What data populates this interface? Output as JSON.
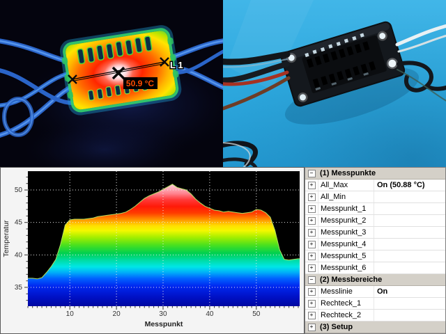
{
  "thermal_view": {
    "line_label": "L 1",
    "temp_label": "50.9 °C",
    "temp_label_color": "#ff4d00",
    "temp_label_bg": "#000000"
  },
  "photo_view": {
    "background_color": "#2aa9e0"
  },
  "chart_data": {
    "type": "area",
    "title": "",
    "xlabel": "Messpunkt",
    "ylabel": "Temperatur",
    "xlim": [
      1,
      59.3
    ],
    "ylim": [
      32.1,
      52.9
    ],
    "xticks": [
      10,
      20,
      30,
      40,
      50
    ],
    "yticks": [
      35,
      40,
      45,
      50
    ],
    "grid": "white-dotted",
    "plot_bg": "#000000",
    "outline_color": "#b0e060",
    "x_start": 1,
    "values": [
      36.4,
      36.4,
      36.3,
      36.5,
      37.3,
      38.2,
      39.3,
      41.6,
      44.6,
      45.4,
      45.5,
      45.5,
      45.5,
      45.6,
      45.7,
      45.9,
      46.0,
      46.1,
      46.2,
      46.3,
      46.4,
      46.6,
      47.0,
      47.5,
      48.1,
      48.7,
      49.1,
      49.4,
      49.7,
      50.1,
      50.5,
      50.9,
      50.4,
      50.2,
      50.0,
      49.4,
      48.6,
      48.0,
      47.5,
      47.2,
      46.9,
      46.8,
      46.6,
      46.7,
      46.6,
      46.5,
      46.4,
      46.5,
      46.6,
      47.0,
      46.9,
      46.5,
      45.8,
      43.8,
      40.8,
      39.3,
      39.2,
      39.3,
      39.4
    ],
    "gradient": [
      {
        "offset": 0.0,
        "color": "#ffffff"
      },
      {
        "offset": 0.07,
        "color": "#ffe0e8"
      },
      {
        "offset": 0.115,
        "color": "#ffbcc8"
      },
      {
        "offset": 0.165,
        "color": "#ff8490"
      },
      {
        "offset": 0.212,
        "color": "#ff3838"
      },
      {
        "offset": 0.262,
        "color": "#ff1a08"
      },
      {
        "offset": 0.31,
        "color": "#ff3c00"
      },
      {
        "offset": 0.342,
        "color": "#ff7400"
      },
      {
        "offset": 0.372,
        "color": "#ffaa00"
      },
      {
        "offset": 0.405,
        "color": "#ffe000"
      },
      {
        "offset": 0.44,
        "color": "#f4f800"
      },
      {
        "offset": 0.49,
        "color": "#a4ee00"
      },
      {
        "offset": 0.55,
        "color": "#46e020"
      },
      {
        "offset": 0.608,
        "color": "#00d050"
      },
      {
        "offset": 0.66,
        "color": "#00dca4"
      },
      {
        "offset": 0.708,
        "color": "#00e6e6"
      },
      {
        "offset": 0.748,
        "color": "#00b2f8"
      },
      {
        "offset": 0.795,
        "color": "#0062ff"
      },
      {
        "offset": 0.852,
        "color": "#0028f0"
      },
      {
        "offset": 0.935,
        "color": "#0010c4"
      },
      {
        "offset": 1.0,
        "color": "#0008a0"
      }
    ]
  },
  "panel": {
    "header_bg": "#d4d0c8",
    "groups": [
      {
        "label": "(1) Messpunkte",
        "expanded": true,
        "rows": [
          {
            "label": "All_Max",
            "value": "On (50.88 °C)"
          },
          {
            "label": "All_Min",
            "value": ""
          },
          {
            "label": "Messpunkt_1",
            "value": ""
          },
          {
            "label": "Messpunkt_2",
            "value": ""
          },
          {
            "label": "Messpunkt_3",
            "value": ""
          },
          {
            "label": "Messpunkt_4",
            "value": ""
          },
          {
            "label": "Messpunkt_5",
            "value": ""
          },
          {
            "label": "Messpunkt_6",
            "value": ""
          }
        ]
      },
      {
        "label": "(2) Messbereiche",
        "expanded": true,
        "rows": [
          {
            "label": "Messlinie",
            "value": "On"
          },
          {
            "label": "Rechteck_1",
            "value": ""
          },
          {
            "label": "Rechteck_2",
            "value": ""
          }
        ]
      },
      {
        "label": "(3) Setup",
        "expanded": false,
        "rows": []
      }
    ]
  }
}
